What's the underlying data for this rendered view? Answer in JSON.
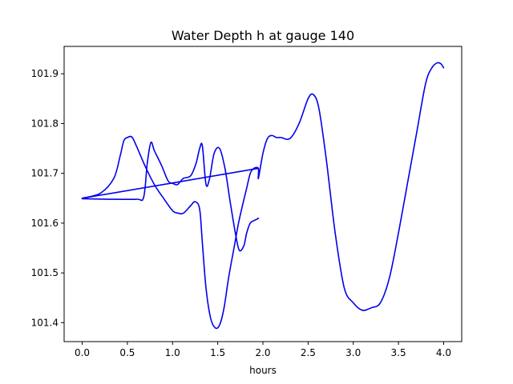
{
  "chart_data": {
    "type": "line",
    "title": "Water Depth h at gauge 140",
    "xlabel": "hours",
    "ylabel": "",
    "xlim": [
      -0.2,
      4.2
    ],
    "ylim": [
      101.362,
      101.955
    ],
    "xticks": [
      0.0,
      0.5,
      1.0,
      1.5,
      2.0,
      2.5,
      3.0,
      3.5,
      4.0
    ],
    "xtick_labels": [
      "0.0",
      "0.5",
      "1.0",
      "1.5",
      "2.0",
      "2.5",
      "3.0",
      "3.5",
      "4.0"
    ],
    "yticks": [
      101.4,
      101.5,
      101.6,
      101.7,
      101.8,
      101.9
    ],
    "ytick_labels": [
      "101.4",
      "101.5",
      "101.6",
      "101.7",
      "101.8",
      "101.9"
    ],
    "grid": false,
    "series": [
      {
        "color": "#0000ee",
        "x": [
          0.0,
          0.2,
          0.35,
          0.42,
          0.46,
          0.5,
          0.55,
          0.6,
          0.7,
          0.8,
          0.9,
          1.0,
          1.06,
          1.12,
          1.2,
          1.25,
          1.3,
          1.33,
          1.37,
          1.42,
          1.47,
          1.52,
          1.57,
          1.62,
          1.68,
          1.73,
          1.78,
          1.82,
          1.86,
          1.9,
          1.95,
          1.95,
          2.0,
          2.05,
          2.1,
          2.15,
          2.2,
          2.3,
          2.4,
          2.5,
          2.56,
          2.62,
          2.7,
          2.8,
          2.9,
          3.0,
          3.1,
          3.2,
          3.3,
          3.4,
          3.5,
          3.6,
          3.7,
          3.8,
          3.87,
          3.93,
          3.97,
          4.0
        ],
        "y": [
          101.65,
          101.66,
          101.69,
          101.735,
          101.765,
          101.772,
          101.773,
          101.755,
          101.713,
          101.677,
          101.65,
          101.625,
          101.62,
          101.62,
          101.635,
          101.643,
          101.628,
          101.56,
          101.47,
          101.41,
          101.39,
          101.395,
          101.43,
          101.49,
          101.55,
          101.6,
          101.64,
          101.67,
          101.7,
          101.71,
          101.71,
          101.69,
          101.74,
          101.77,
          101.776,
          101.772,
          101.772,
          101.77,
          101.8,
          101.85,
          101.858,
          101.83,
          101.73,
          101.58,
          101.47,
          101.44,
          101.425,
          101.43,
          101.44,
          101.49,
          101.58,
          101.68,
          101.78,
          101.88,
          101.912,
          101.922,
          101.92,
          101.912
        ]
      },
      {
        "color": "#0000ee",
        "x": [
          0.0,
          0.3,
          0.6,
          0.68,
          0.72,
          0.76,
          0.8,
          0.88,
          0.95,
          1.0,
          1.05,
          1.08,
          1.12,
          1.2,
          1.26,
          1.3,
          1.33,
          1.37,
          1.41,
          1.46,
          1.52,
          1.58,
          1.64,
          1.7,
          1.74,
          1.79,
          1.82,
          1.86,
          1.9,
          1.935,
          1.95
        ],
        "y": [
          101.649,
          101.648,
          101.648,
          101.652,
          101.72,
          101.762,
          101.745,
          101.715,
          101.685,
          101.68,
          101.677,
          101.682,
          101.69,
          101.695,
          101.72,
          101.75,
          101.755,
          101.678,
          101.69,
          101.74,
          101.75,
          101.71,
          101.64,
          101.575,
          101.545,
          101.555,
          101.58,
          101.6,
          101.605,
          101.608,
          101.61
        ]
      },
      {
        "color": "#0000ee",
        "x": [
          0.0,
          1.95
        ],
        "y": [
          101.65,
          101.71
        ]
      }
    ]
  }
}
